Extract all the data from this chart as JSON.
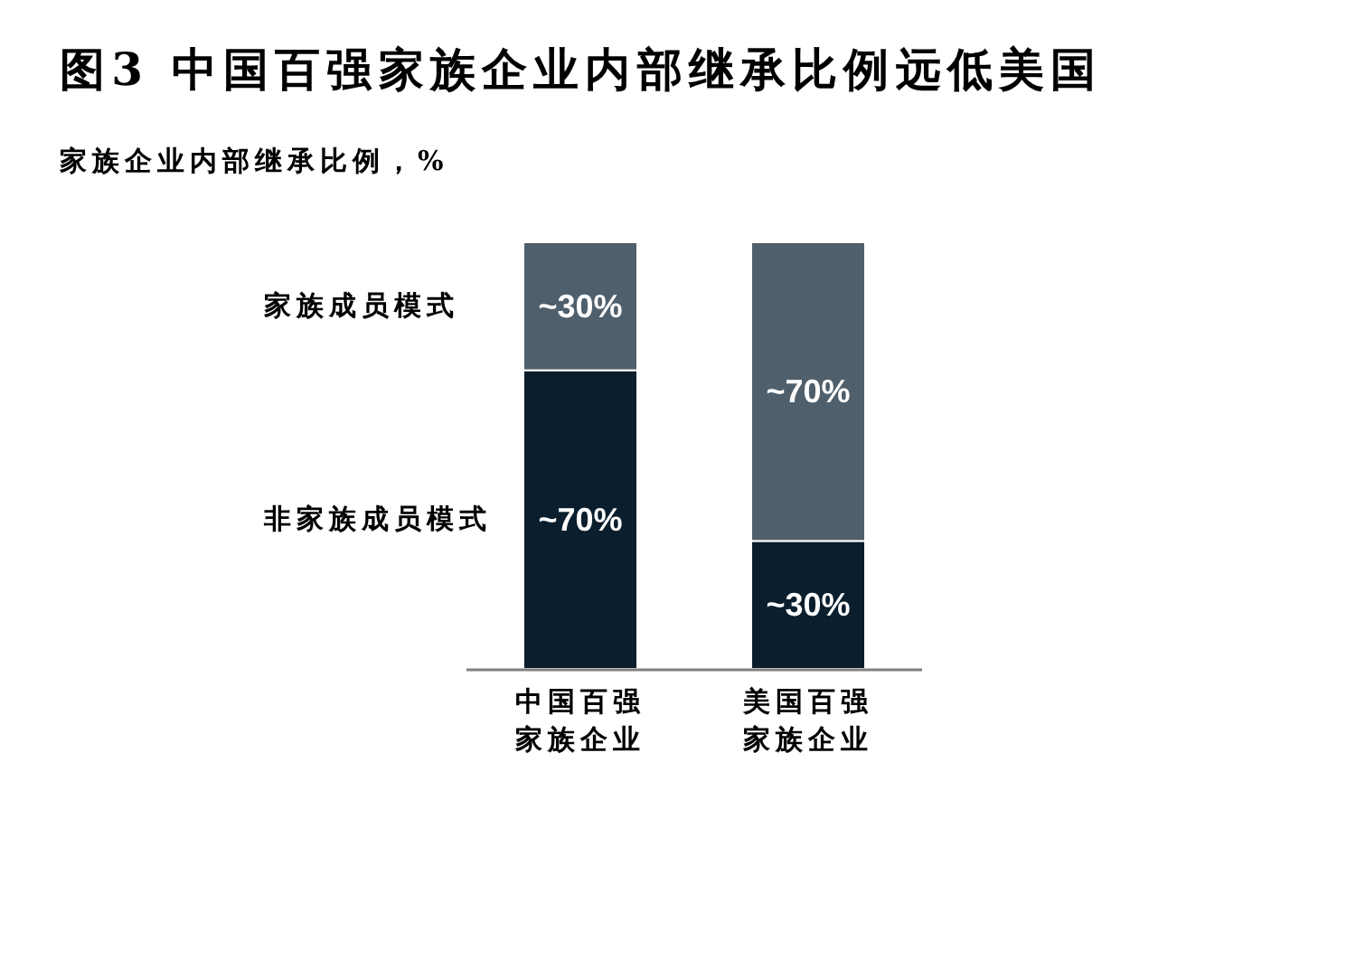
{
  "chart_data": {
    "type": "bar",
    "title": "图3 中国百强家族企业内部继承比例远低美国",
    "subtitle": "家族企业内部继承比例，%",
    "categories": [
      "中国百强家族企业",
      "美国百强家族企业"
    ],
    "stacked": true,
    "series": [
      {
        "name": "非家族成员模式",
        "color": "#0a1e2d",
        "values": [
          70,
          30
        ],
        "value_labels": [
          "~70%",
          "~30%"
        ]
      },
      {
        "name": "家族成员模式",
        "color": "#4f5f6b",
        "values": [
          30,
          70
        ],
        "value_labels": [
          "~30%",
          "~70%"
        ]
      }
    ]
  }
}
